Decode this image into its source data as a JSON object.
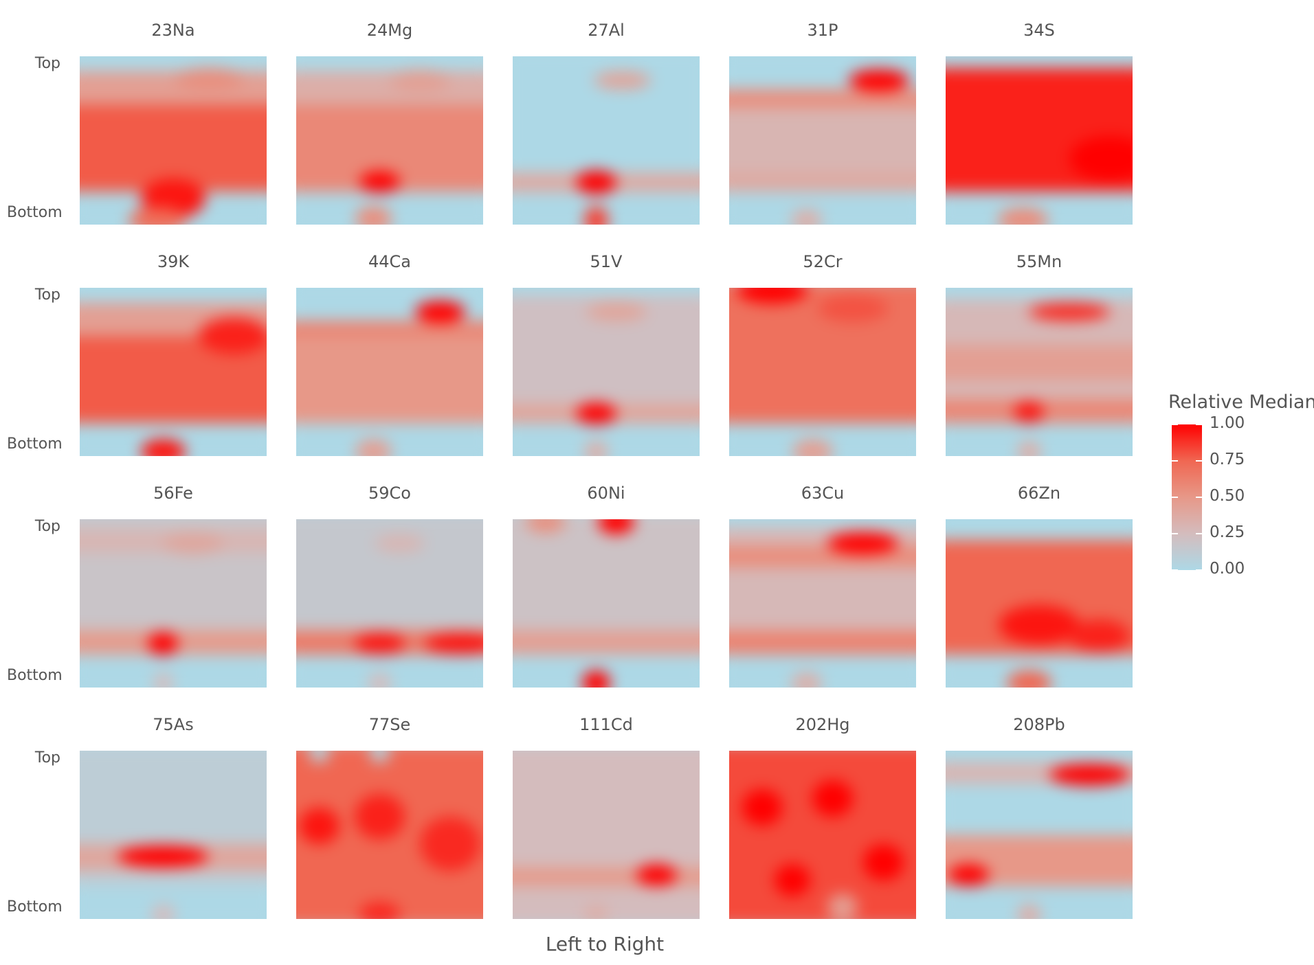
{
  "chart_data": {
    "type": "heatmap",
    "xlabel": "Left to Right",
    "ylabel": "",
    "y_tick_labels": {
      "top": "Top",
      "bottom": "Bottom"
    },
    "facet_grid": {
      "rows": 4,
      "cols": 5
    },
    "legend": {
      "title": "Relative Median",
      "placement": "right",
      "ticks": [
        "1.00",
        "0.75",
        "0.50",
        "0.25",
        "0.00"
      ],
      "range": [
        0,
        1
      ],
      "colors": [
        "#add8e6",
        "#d4bcbd",
        "#e79888",
        "#f06752",
        "#ff0000"
      ]
    },
    "panels": [
      {
        "label": "23Na",
        "bands": [
          [
            0.12,
            0.3,
            0.45
          ],
          [
            0.3,
            0.78,
            0.78
          ]
        ],
        "spots": [
          [
            0.5,
            0.82,
            0.32,
            0.22,
            0.95
          ],
          [
            0.42,
            0.94,
            0.28,
            0.14,
            0.72
          ],
          [
            0.68,
            0.16,
            0.35,
            0.12,
            0.55
          ]
        ]
      },
      {
        "label": "24Mg",
        "bands": [
          [
            0.12,
            0.3,
            0.35
          ],
          [
            0.3,
            0.78,
            0.58
          ]
        ],
        "spots": [
          [
            0.45,
            0.73,
            0.2,
            0.12,
            1.0
          ],
          [
            0.42,
            0.93,
            0.18,
            0.14,
            0.55
          ],
          [
            0.65,
            0.17,
            0.3,
            0.12,
            0.45
          ]
        ]
      },
      {
        "label": "27Al",
        "bands": [
          [
            0.68,
            0.78,
            0.38
          ]
        ],
        "spots": [
          [
            0.45,
            0.73,
            0.2,
            0.13,
            1.0
          ],
          [
            0.45,
            0.94,
            0.12,
            0.16,
            0.85
          ],
          [
            0.58,
            0.17,
            0.28,
            0.1,
            0.42
          ]
        ]
      },
      {
        "label": "31P",
        "bands": [
          [
            0.22,
            0.32,
            0.55
          ],
          [
            0.32,
            0.78,
            0.3
          ],
          [
            0.68,
            0.78,
            0.38
          ]
        ],
        "spots": [
          [
            0.78,
            0.17,
            0.3,
            0.12,
            1.0
          ],
          [
            0.42,
            0.94,
            0.15,
            0.12,
            0.35
          ]
        ]
      },
      {
        "label": "34S",
        "bands": [
          [
            0.1,
            0.78,
            0.92
          ]
        ],
        "spots": [
          [
            0.85,
            0.6,
            0.4,
            0.25,
            1.0
          ],
          [
            0.42,
            0.94,
            0.25,
            0.14,
            0.55
          ]
        ]
      },
      {
        "label": "39K",
        "bands": [
          [
            0.12,
            0.3,
            0.45
          ],
          [
            0.3,
            0.78,
            0.78
          ]
        ],
        "spots": [
          [
            0.8,
            0.3,
            0.35,
            0.2,
            0.92
          ],
          [
            0.45,
            0.94,
            0.22,
            0.14,
            0.95
          ]
        ]
      },
      {
        "label": "44Ca",
        "bands": [
          [
            0.22,
            0.3,
            0.6
          ],
          [
            0.3,
            0.78,
            0.5
          ]
        ],
        "spots": [
          [
            0.75,
            0.17,
            0.25,
            0.12,
            1.0
          ],
          [
            0.42,
            0.94,
            0.18,
            0.14,
            0.45
          ]
        ]
      },
      {
        "label": "51V",
        "bands": [
          [
            0.08,
            0.78,
            0.22
          ],
          [
            0.68,
            0.78,
            0.42
          ]
        ],
        "spots": [
          [
            0.45,
            0.73,
            0.2,
            0.12,
            1.0
          ],
          [
            0.55,
            0.17,
            0.3,
            0.1,
            0.42
          ],
          [
            0.45,
            0.94,
            0.12,
            0.12,
            0.35
          ]
        ]
      },
      {
        "label": "52Cr",
        "bands": [
          [
            0.0,
            0.78,
            0.7
          ]
        ],
        "spots": [
          [
            0.25,
            0.05,
            0.35,
            0.15,
            1.0
          ],
          [
            0.65,
            0.15,
            0.35,
            0.15,
            0.8
          ],
          [
            0.45,
            0.94,
            0.2,
            0.14,
            0.45
          ]
        ]
      },
      {
        "label": "55Mn",
        "bands": [
          [
            0.1,
            0.78,
            0.28
          ],
          [
            0.35,
            0.55,
            0.45
          ],
          [
            0.65,
            0.78,
            0.58
          ]
        ],
        "spots": [
          [
            0.65,
            0.17,
            0.4,
            0.1,
            0.9
          ],
          [
            0.45,
            0.72,
            0.15,
            0.12,
            0.95
          ],
          [
            0.45,
            0.94,
            0.12,
            0.12,
            0.35
          ]
        ]
      },
      {
        "label": "56Fe",
        "bands": [
          [
            0.0,
            0.78,
            0.18
          ],
          [
            0.1,
            0.22,
            0.3
          ],
          [
            0.65,
            0.78,
            0.48
          ]
        ],
        "spots": [
          [
            0.45,
            0.72,
            0.15,
            0.13,
            1.0
          ],
          [
            0.6,
            0.17,
            0.3,
            0.12,
            0.4
          ],
          [
            0.45,
            0.94,
            0.1,
            0.12,
            0.25
          ]
        ]
      },
      {
        "label": "59Co",
        "bands": [
          [
            0.0,
            0.78,
            0.15
          ],
          [
            0.65,
            0.78,
            0.65
          ]
        ],
        "spots": [
          [
            0.45,
            0.72,
            0.25,
            0.12,
            0.95
          ],
          [
            0.85,
            0.72,
            0.35,
            0.12,
            0.95
          ],
          [
            0.55,
            0.17,
            0.25,
            0.1,
            0.3
          ],
          [
            0.45,
            0.94,
            0.12,
            0.12,
            0.25
          ]
        ]
      },
      {
        "label": "60Ni",
        "bands": [
          [
            0.0,
            0.78,
            0.2
          ],
          [
            0.65,
            0.78,
            0.45
          ]
        ],
        "spots": [
          [
            0.55,
            0.05,
            0.18,
            0.14,
            1.0
          ],
          [
            0.2,
            0.05,
            0.2,
            0.12,
            0.55
          ],
          [
            0.45,
            0.94,
            0.14,
            0.14,
            1.0
          ]
        ]
      },
      {
        "label": "63Cu",
        "bands": [
          [
            0.08,
            0.78,
            0.28
          ],
          [
            0.18,
            0.3,
            0.55
          ],
          [
            0.65,
            0.78,
            0.6
          ]
        ],
        "spots": [
          [
            0.7,
            0.17,
            0.35,
            0.12,
            1.0
          ],
          [
            0.42,
            0.94,
            0.15,
            0.12,
            0.35
          ]
        ]
      },
      {
        "label": "66Zn",
        "bands": [
          [
            0.15,
            0.78,
            0.75
          ]
        ],
        "spots": [
          [
            0.5,
            0.62,
            0.4,
            0.22,
            0.95
          ],
          [
            0.8,
            0.68,
            0.3,
            0.18,
            0.92
          ],
          [
            0.45,
            0.94,
            0.22,
            0.14,
            0.75
          ]
        ]
      },
      {
        "label": "75As",
        "bands": [
          [
            0.0,
            0.78,
            0.1
          ],
          [
            0.55,
            0.7,
            0.4
          ]
        ],
        "spots": [
          [
            0.45,
            0.62,
            0.45,
            0.12,
            1.0
          ],
          [
            0.45,
            0.94,
            0.12,
            0.12,
            0.25
          ]
        ]
      },
      {
        "label": "77Se",
        "bands": [
          [
            0.0,
            1.0,
            0.75
          ]
        ],
        "spots": [
          [
            0.15,
            0.45,
            0.2,
            0.2,
            0.95
          ],
          [
            0.45,
            0.4,
            0.25,
            0.25,
            0.92
          ],
          [
            0.8,
            0.55,
            0.3,
            0.3,
            0.9
          ],
          [
            0.45,
            0.94,
            0.2,
            0.14,
            0.9
          ],
          [
            0.15,
            0.05,
            0.1,
            0.1,
            0.05
          ],
          [
            0.45,
            0.05,
            0.1,
            0.1,
            0.05
          ]
        ]
      },
      {
        "label": "111Cd",
        "bands": [
          [
            0.0,
            1.0,
            0.25
          ],
          [
            0.68,
            0.78,
            0.48
          ]
        ],
        "spots": [
          [
            0.75,
            0.72,
            0.2,
            0.12,
            1.0
          ],
          [
            0.45,
            0.94,
            0.12,
            0.12,
            0.35
          ]
        ]
      },
      {
        "label": "202Hg",
        "bands": [
          [
            0.0,
            1.0,
            0.82
          ]
        ],
        "spots": [
          [
            0.2,
            0.35,
            0.2,
            0.2,
            1.0
          ],
          [
            0.55,
            0.3,
            0.2,
            0.2,
            1.0
          ],
          [
            0.8,
            0.65,
            0.2,
            0.2,
            1.0
          ],
          [
            0.35,
            0.75,
            0.18,
            0.18,
            1.0
          ],
          [
            0.6,
            0.9,
            0.15,
            0.15,
            0.45
          ]
        ]
      },
      {
        "label": "208Pb",
        "bands": [
          [
            0.1,
            0.22,
            0.3
          ],
          [
            0.5,
            0.78,
            0.5
          ]
        ],
        "spots": [
          [
            0.75,
            0.17,
            0.4,
            0.12,
            1.0
          ],
          [
            0.15,
            0.72,
            0.2,
            0.12,
            1.0
          ],
          [
            0.45,
            0.94,
            0.12,
            0.12,
            0.35
          ]
        ]
      }
    ]
  }
}
